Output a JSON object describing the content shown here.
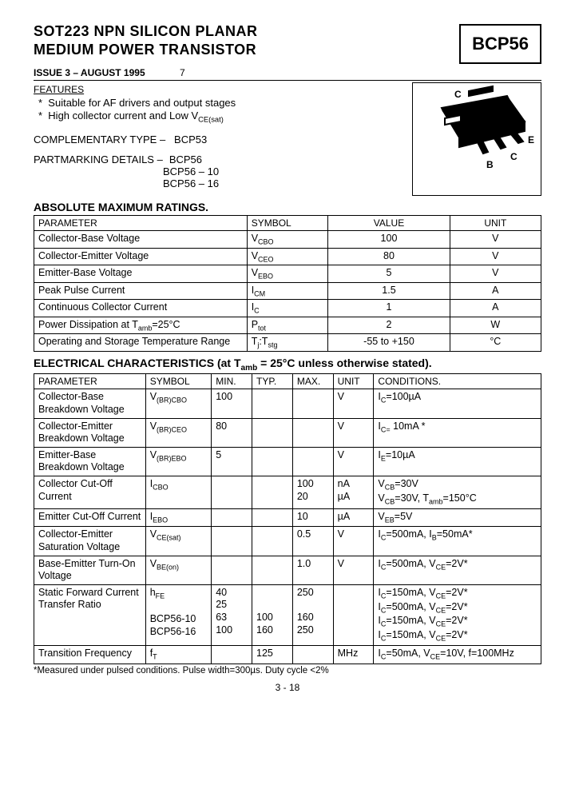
{
  "title_line1": "SOT223 NPN SILICON PLANAR",
  "title_line2": "MEDIUM POWER TRANSISTOR",
  "part_number": "BCP56",
  "issue": "ISSUE 3 – AUGUST 1995",
  "issue_extra": "7",
  "features_label": "FEATURES",
  "feature1": "Suitable for AF drivers and output stages",
  "feature2_pre": "High collector current and Low V",
  "feature2_sub": "CE(sat)",
  "comp_label": "COMPLEMENTARY TYPE  –",
  "comp_val": "BCP53",
  "marking_label": "PARTMARKING DETAILS  –",
  "marking_vals": [
    "BCP56",
    "BCP56 – 10",
    "BCP56 – 16"
  ],
  "pkg_labels": {
    "c": "C",
    "e": "E",
    "b": "B"
  },
  "amr_heading": "ABSOLUTE MAXIMUM RATINGS.",
  "amr_hdr": [
    "PARAMETER",
    "SYMBOL",
    "VALUE",
    "UNIT"
  ],
  "amr_rows": [
    {
      "p": "Collector-Base Voltage",
      "s": "V",
      "ss": "CBO",
      "v": "100",
      "u": "V"
    },
    {
      "p": "Collector-Emitter Voltage",
      "s": "V",
      "ss": "CEO",
      "v": "80",
      "u": "V"
    },
    {
      "p": "Emitter-Base Voltage",
      "s": "V",
      "ss": "EBO",
      "v": "5",
      "u": "V"
    },
    {
      "p": "Peak Pulse Current",
      "s": "I",
      "ss": "CM",
      "v": "1.5",
      "u": "A"
    },
    {
      "p": "Continuous Collector Current",
      "s": "I",
      "ss": "C",
      "v": "1",
      "u": "A"
    },
    {
      "p": "Power Dissipation at T",
      "p_sub": "amb",
      "p_post": "=25°C",
      "s": "P",
      "ss": "tot",
      "v": "2",
      "u": "W"
    },
    {
      "p": "Operating and Storage Temperature Range",
      "s": "T",
      "ss": "j",
      "s2": ":T",
      "ss2": "stg",
      "v": "-55 to +150",
      "u": "°C"
    }
  ],
  "ec_heading_pre": "ELECTRICAL CHARACTERISTICS (at T",
  "ec_heading_sub": "amb",
  "ec_heading_post": " = 25°C unless otherwise stated).",
  "ec_hdr": [
    "PARAMETER",
    "SYMBOL",
    "MIN.",
    "TYP.",
    "MAX.",
    "UNIT",
    "CONDITIONS."
  ],
  "ec": {
    "r1": {
      "p": "Collector-Base Breakdown Voltage",
      "sym": "V",
      "sub": "(BR)CBO",
      "min": "100",
      "typ": "",
      "max": "",
      "unit": "V",
      "cond": "I<sub>C</sub>=100µA"
    },
    "r2": {
      "p": "Collector-Emitter Breakdown Voltage",
      "sym": "V",
      "sub": "(BR)CEO",
      "min": "80",
      "typ": "",
      "max": "",
      "unit": "V",
      "cond": "I<sub>C=</sub> 10mA *"
    },
    "r3": {
      "p": "Emitter-Base Breakdown Voltage",
      "sym": "V",
      "sub": "(BR)EBO",
      "min": "5",
      "typ": "",
      "max": "",
      "unit": "V",
      "cond": "I<sub>E</sub>=10µA"
    },
    "r4": {
      "p": "Collector Cut-Off Current",
      "sym": "I",
      "sub": "CBO",
      "min": "",
      "typ": "",
      "max": "100<br>20",
      "unit": "nA<br>µA",
      "cond": "V<sub>CB</sub>=30V<br>V<sub>CB</sub>=30V, T<sub>amb</sub>=150°C"
    },
    "r5": {
      "p": "Emitter Cut-Off Current",
      "sym": "I",
      "sub": "EBO",
      "min": "",
      "typ": "",
      "max": "10",
      "unit": "µA",
      "cond": "V<sub>EB</sub>=5V"
    },
    "r6": {
      "p": "Collector-Emitter Saturation Voltage",
      "sym": "V",
      "sub": "CE(sat)",
      "min": "",
      "typ": "",
      "max": "0.5",
      "unit": "V",
      "cond": "I<sub>C</sub>=500mA, I<sub>B</sub>=50mA*"
    },
    "r7": {
      "p": "Base-Emitter Turn-On Voltage",
      "sym": "V",
      "sub": "BE(on)",
      "min": "",
      "typ": "",
      "max": "1.0",
      "unit": "V",
      "cond": "I<sub>C</sub>=500mA, V<sub>CE</sub>=2V*"
    },
    "r8": {
      "p": "Static Forward Current Transfer Ratio",
      "sym": "h",
      "sub": "FE",
      "sym_lines": "<br><br>BCP56-10<br>BCP56-16",
      "min": "40<br>25<br>63<br>100",
      "typ": "<br><br>100<br>160",
      "max": "250<br><br>160<br>250",
      "unit": "",
      "cond": "I<sub>C</sub>=150mA, V<sub>CE</sub>=2V*<br>I<sub>C</sub>=500mA, V<sub>CE</sub>=2V*<br>I<sub>C</sub>=150mA, V<sub>CE</sub>=2V*<br>I<sub>C</sub>=150mA, V<sub>CE</sub>=2V*"
    },
    "r9": {
      "p": "Transition Frequency",
      "sym": "f",
      "sub": "T",
      "min": "",
      "typ": "125",
      "max": "",
      "unit": "MHz",
      "cond": "I<sub>C</sub>=50mA, V<sub>CE</sub>=10V, f=100MHz"
    }
  },
  "footnote": "*Measured under pulsed conditions. Pulse width=300µs. Duty cycle <2%",
  "page_num": "3 - 18"
}
